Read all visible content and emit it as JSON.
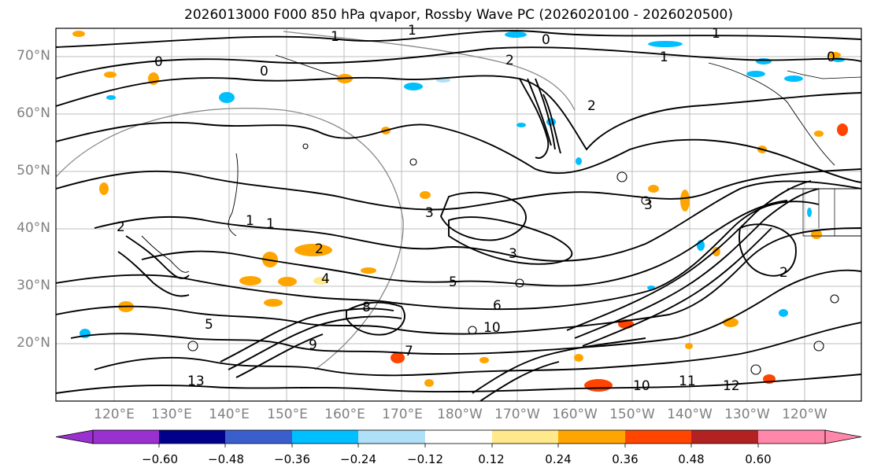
{
  "title": "2026013000 F000 850 hPa qvapor, Rossby Wave PC (2026020100 - 2026020500)",
  "lat_labels": [
    "70°N",
    "60°N",
    "50°N",
    "40°N",
    "30°N",
    "20°N"
  ],
  "lon_labels": [
    "120°E",
    "130°E",
    "140°E",
    "150°E",
    "160°E",
    "170°E",
    "180°W",
    "170°W",
    "160°W",
    "150°W",
    "140°W",
    "130°W",
    "120°W"
  ],
  "colorbar": {
    "colors": [
      "#9b30d0",
      "#00008b",
      "#3a5fcd",
      "#00bfff",
      "#b0e0f7",
      "#ffffff",
      "#ffe98c",
      "#ffa500",
      "#ff4500",
      "#b22222",
      "#ff88aa"
    ],
    "tick_labels": [
      "−0.60",
      "−0.48",
      "−0.36",
      "−0.24",
      "−0.12",
      "0.12",
      "0.24",
      "0.36",
      "0.48",
      "0.60"
    ]
  },
  "contour_labels": [
    "0",
    "0",
    "1",
    "1",
    "2",
    "1",
    "0",
    "1",
    "2",
    "3",
    "3",
    "2",
    "3",
    "4",
    "5",
    "5",
    "6",
    "7",
    "8",
    "9",
    "10",
    "11",
    "10",
    "12",
    "2",
    "1",
    "0",
    "1",
    "2",
    "13"
  ]
}
